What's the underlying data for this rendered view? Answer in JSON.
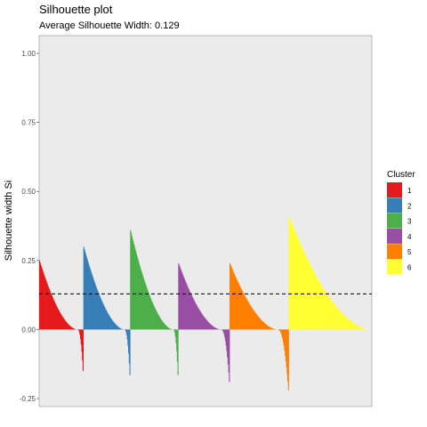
{
  "chart_data": {
    "type": "bar",
    "title": "Silhouette plot",
    "subtitle": "Average Silhouette Width: 0.129",
    "xlabel": "",
    "ylabel": "Silhouette width Si",
    "ylim": [
      -0.25,
      1.0
    ],
    "yticks": [
      -0.25,
      0.0,
      0.25,
      0.5,
      0.75,
      1.0
    ],
    "ytick_labels": [
      "-0.25",
      "0.00",
      "0.25",
      "0.50",
      "0.75",
      "1.00"
    ],
    "average_silhouette_width": 0.129,
    "grid": false,
    "legend": {
      "title": "Cluster",
      "position": "right"
    },
    "series": [
      {
        "name": "1",
        "color": "#E41A1C",
        "n_points": 68,
        "max": 0.25,
        "min": -0.15
      },
      {
        "name": "2",
        "color": "#377EB8",
        "n_points": 72,
        "max": 0.3,
        "min": -0.165
      },
      {
        "name": "3",
        "color": "#4DAF4A",
        "n_points": 74,
        "max": 0.36,
        "min": -0.165
      },
      {
        "name": "4",
        "color": "#984EA3",
        "n_points": 79,
        "max": 0.24,
        "min": -0.19
      },
      {
        "name": "5",
        "color": "#FF7F00",
        "n_points": 91,
        "max": 0.24,
        "min": -0.22
      },
      {
        "name": "6",
        "color": "#FFFF33",
        "n_points": 128,
        "max": 0.41,
        "min": 0.0
      }
    ]
  }
}
